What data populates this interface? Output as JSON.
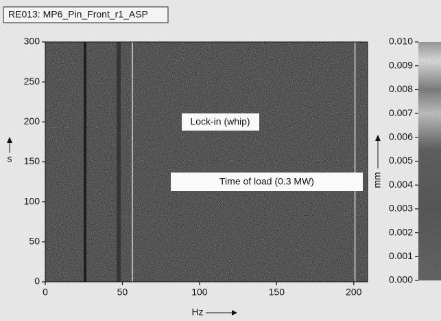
{
  "chart_data": {
    "type": "spectrogram",
    "title": "RE013: MP6_Pin_Front_r1_ASP",
    "xlabel": "Hz",
    "ylabel": "s",
    "xlim": [
      0,
      209
    ],
    "xticks": [
      0,
      50,
      100,
      150,
      200
    ],
    "ylim": [
      0,
      300
    ],
    "yticks": [
      0,
      50,
      100,
      150,
      200,
      250,
      300
    ],
    "annotations": [
      "Lock-in (whip)",
      "Time of load (0.3 MW)"
    ],
    "colorbar": {
      "label": "mm",
      "lim": [
        0,
        0.01
      ],
      "ticks": [
        {
          "value": 0,
          "label": "0.000"
        },
        {
          "value": 0.001,
          "label": "0.001"
        },
        {
          "value": 0.002,
          "label": "0.002"
        },
        {
          "value": 0.003,
          "label": "0.003"
        },
        {
          "value": 0.004,
          "label": "0.004"
        },
        {
          "value": 0.005,
          "label": "0.005"
        },
        {
          "value": 0.006,
          "label": "0.006"
        },
        {
          "value": 0.007,
          "label": "0.007"
        },
        {
          "value": 0.008,
          "label": "0.008"
        },
        {
          "value": 0.009,
          "label": "0.009"
        },
        {
          "value": 0.01,
          "label": "0.010"
        }
      ]
    }
  }
}
